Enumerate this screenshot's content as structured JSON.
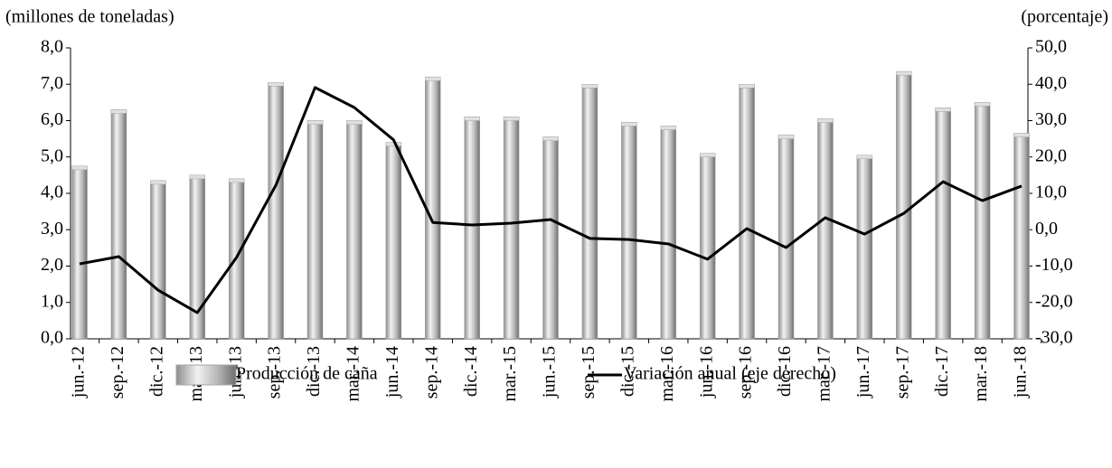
{
  "chart_data": {
    "type": "bar",
    "y_label": "(millones de toneladas)",
    "y2_label": "(porcentaje)",
    "categories": [
      "jun.-12",
      "sep.-12",
      "dic.-12",
      "mar.-13",
      "jun.-13",
      "sep.-13",
      "dic.-13",
      "mar.-14",
      "jun.-14",
      "sep.-14",
      "dic.-14",
      "mar.-15",
      "jun.-15",
      "sep.-15",
      "dic.-15",
      "mar.-16",
      "jun.-16",
      "sep.-16",
      "dic.-16",
      "mar.-17",
      "jun.-17",
      "sep.-17",
      "dic.-17",
      "mar.-18",
      "jun.-18"
    ],
    "series": [
      {
        "name": "Producción de caña",
        "type": "bar",
        "color": "#a6a6a6",
        "values": [
          4.75,
          6.3,
          4.35,
          4.5,
          4.4,
          7.05,
          6.0,
          6.0,
          5.4,
          7.2,
          6.1,
          6.1,
          5.55,
          7.0,
          5.95,
          5.85,
          5.1,
          7.0,
          5.6,
          6.05,
          5.05,
          7.35,
          6.35,
          6.5,
          5.65
        ]
      },
      {
        "name": "Variación anual (eje derecho)",
        "type": "line",
        "axis": "y2",
        "color": "#000000",
        "values": [
          -9.4,
          -7.4,
          -16.6,
          -22.8,
          -7.6,
          12.2,
          39.1,
          33.6,
          24.7,
          2.0,
          1.3,
          1.8,
          2.8,
          -2.4,
          -2.7,
          -3.9,
          -8.1,
          0.3,
          -4.9,
          3.3,
          -1.2,
          4.5,
          13.2,
          8.0,
          12.0
        ]
      }
    ],
    "ylim": [
      0,
      8
    ],
    "yticks": [
      {
        "value": 0,
        "label": "0,0"
      },
      {
        "value": 1,
        "label": "1,0"
      },
      {
        "value": 2,
        "label": "2,0"
      },
      {
        "value": 3,
        "label": "3,0"
      },
      {
        "value": 4,
        "label": "4,0"
      },
      {
        "value": 5,
        "label": "5,0"
      },
      {
        "value": 6,
        "label": "6,0"
      },
      {
        "value": 7,
        "label": "7,0"
      },
      {
        "value": 8,
        "label": "8,0"
      }
    ],
    "y2lim": [
      -30,
      50
    ],
    "y2ticks": [
      {
        "value": -30,
        "label": "-30,0"
      },
      {
        "value": -20,
        "label": "-20,0"
      },
      {
        "value": -10,
        "label": "-10,0"
      },
      {
        "value": 0,
        "label": "0,0"
      },
      {
        "value": 10,
        "label": "10,0"
      },
      {
        "value": 20,
        "label": "20,0"
      },
      {
        "value": 30,
        "label": "30,0"
      },
      {
        "value": 40,
        "label": "40,0"
      },
      {
        "value": 50,
        "label": "50,0"
      }
    ],
    "grid": false,
    "legend": "bottom"
  }
}
